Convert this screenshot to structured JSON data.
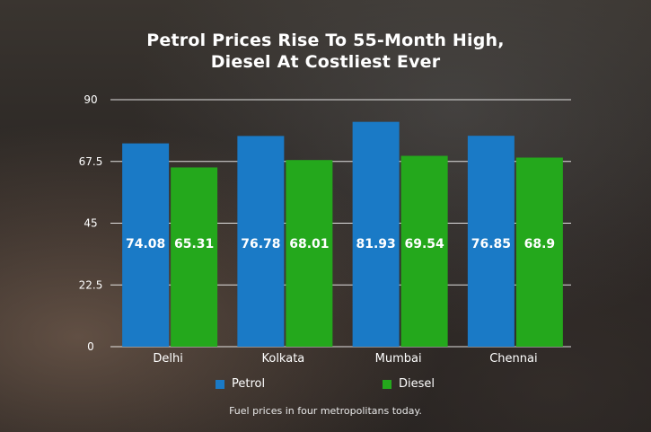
{
  "title_lines": [
    "Petrol Prices Rise To 55-Month High,",
    "Diesel At Costliest Ever"
  ],
  "caption": "Fuel prices in four metropolitans today.",
  "chart_data": {
    "type": "bar",
    "categories": [
      "Delhi",
      "Kolkata",
      "Mumbai",
      "Chennai"
    ],
    "series": [
      {
        "name": "Petrol",
        "color": "#1a7ac6",
        "values": [
          74.08,
          76.78,
          81.93,
          76.85
        ],
        "labels": [
          "74.08",
          "76.78",
          "81.93",
          "76.85"
        ]
      },
      {
        "name": "Diesel",
        "color": "#24a81c",
        "values": [
          65.31,
          68.01,
          69.54,
          68.9
        ],
        "labels": [
          "65.31",
          "68.01",
          "69.54",
          "68.9"
        ]
      }
    ],
    "ylim": [
      0,
      90
    ],
    "yticks": [
      0,
      22.5,
      45,
      67.5,
      90
    ],
    "ytick_labels": [
      "0",
      "22.5",
      "45",
      "67.5",
      "90"
    ],
    "grid": true,
    "legend_position": "bottom"
  }
}
